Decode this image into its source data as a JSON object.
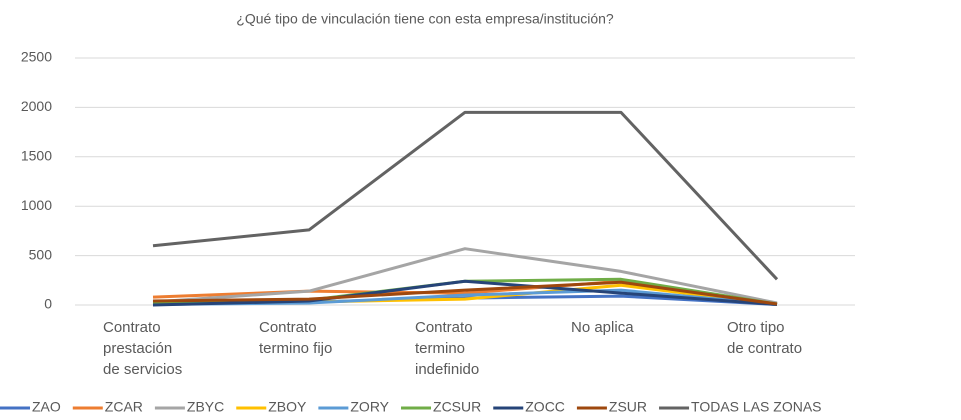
{
  "chart_data": {
    "type": "line",
    "title": "¿Qué tipo de vinculación tiene con esta empresa/institución?",
    "categories": [
      "Contrato prestación de servicios",
      "Contrato termino fijo",
      "Contrato termino indefinido",
      "No aplica",
      "Otro tipo de contrato"
    ],
    "ylim": [
      0,
      2500
    ],
    "yticks": [
      0,
      500,
      1000,
      1500,
      2000,
      2500
    ],
    "grid": true,
    "legend": "bottom",
    "series": [
      {
        "name": "ZAO",
        "color": "#4472c4",
        "values": [
          10,
          30,
          70,
          90,
          5
        ]
      },
      {
        "name": "ZCAR",
        "color": "#ed7d31",
        "values": [
          80,
          140,
          120,
          240,
          10
        ]
      },
      {
        "name": "ZBYC",
        "color": "#a5a5a5",
        "values": [
          30,
          140,
          570,
          340,
          20
        ]
      },
      {
        "name": "ZBOY",
        "color": "#ffc000",
        "values": [
          10,
          30,
          60,
          200,
          5
        ]
      },
      {
        "name": "ZORY",
        "color": "#5b9bd5",
        "values": [
          5,
          20,
          100,
          150,
          5
        ]
      },
      {
        "name": "ZCSUR",
        "color": "#70ad47",
        "values": [
          20,
          50,
          240,
          260,
          10
        ]
      },
      {
        "name": "ZOCC",
        "color": "#264478",
        "values": [
          0,
          40,
          240,
          120,
          5
        ]
      },
      {
        "name": "ZSUR",
        "color": "#9e480e",
        "values": [
          40,
          60,
          150,
          230,
          10
        ]
      },
      {
        "name": "TODAS LAS ZONAS",
        "color": "#636363",
        "values": [
          600,
          760,
          1950,
          1950,
          260
        ]
      }
    ]
  }
}
